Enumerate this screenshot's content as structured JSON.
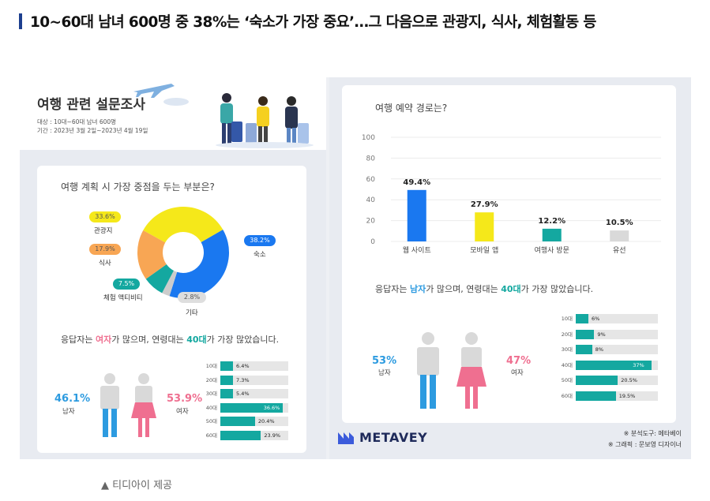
{
  "headline": "10~60대 남녀 600명 중 38%는 ‘숙소가 가장 중요’…그 다음으로 관광지, 식사, 체험활동 등",
  "source": "▲ 티디아이 제공",
  "survey": {
    "title": "여행 관련 설문조사",
    "target": "대상 : 10대~60대 남녀 600명",
    "period": "기간 : 2023년 3월 2일~2023년 4월 19일"
  },
  "logo": "METAVEY",
  "credits": [
    "※ 분석도구: 메타베이",
    "※ 그래픽 : 문보영 디자이너"
  ],
  "colors": {
    "blue": "#1a78f0",
    "yellow": "#f5e81a",
    "orange": "#f8a654",
    "teal": "#14a8a0",
    "gray": "#cccccc",
    "pink": "#ef6f90",
    "lightblue": "#2d9be0"
  },
  "chart_data": [
    {
      "type": "pie",
      "title": "여행 계획 시 가장 중점을 두는 부분은?",
      "labels": [
        "숙소",
        "관광지",
        "식사",
        "체험 액티비티",
        "기타"
      ],
      "values": [
        38.2,
        33.6,
        17.9,
        7.5,
        2.8
      ],
      "value_labels": [
        "38.2%",
        "33.6%",
        "17.9%",
        "7.5%",
        "2.8%"
      ],
      "donut": true
    },
    {
      "type": "bar",
      "orientation": "horizontal",
      "caption_parts": [
        "응답자는 ",
        "여자",
        "가 많으며, 연령대는 ",
        "40대",
        "가 가장 많았습니다."
      ],
      "gender": {
        "male_pct": "46.1%",
        "male_label": "남자",
        "female_pct": "53.9%",
        "female_label": "여자"
      },
      "categories": [
        "10대",
        "20대",
        "30대",
        "40대",
        "50대",
        "60대"
      ],
      "values": [
        6.4,
        7.3,
        5.4,
        36.6,
        20.4,
        23.9
      ],
      "value_labels": [
        "6.4%",
        "7.3%",
        "5.4%",
        "36.6%",
        "20.4%",
        "23.9%"
      ],
      "xlim": [
        0,
        40
      ]
    },
    {
      "type": "bar",
      "title": "여행 예약 경로는?",
      "categories": [
        "웹 사이트",
        "모바일 앱",
        "여행사 방문",
        "유선"
      ],
      "values": [
        49.4,
        27.9,
        12.2,
        10.5
      ],
      "value_labels": [
        "49.4%",
        "27.9%",
        "12.2%",
        "10.5%"
      ],
      "yticks": [
        "0",
        "20",
        "40",
        "60",
        "80",
        "100"
      ],
      "ylim": [
        0,
        100
      ],
      "grid": true
    },
    {
      "type": "bar",
      "orientation": "horizontal",
      "caption_parts": [
        "응답자는 ",
        "남자",
        "가 많으며, 연령대는 ",
        "40대",
        "가 가장 많았습니다."
      ],
      "gender": {
        "male_pct": "53%",
        "male_label": "남자",
        "female_pct": "47%",
        "female_label": "여자"
      },
      "categories": [
        "10대",
        "20대",
        "30대",
        "40대",
        "50대",
        "60대"
      ],
      "values": [
        6,
        9,
        8,
        37,
        20.5,
        19.5
      ],
      "value_labels": [
        "6%",
        "9%",
        "8%",
        "37%",
        "20.5%",
        "19.5%"
      ],
      "xlim": [
        0,
        40
      ]
    }
  ]
}
